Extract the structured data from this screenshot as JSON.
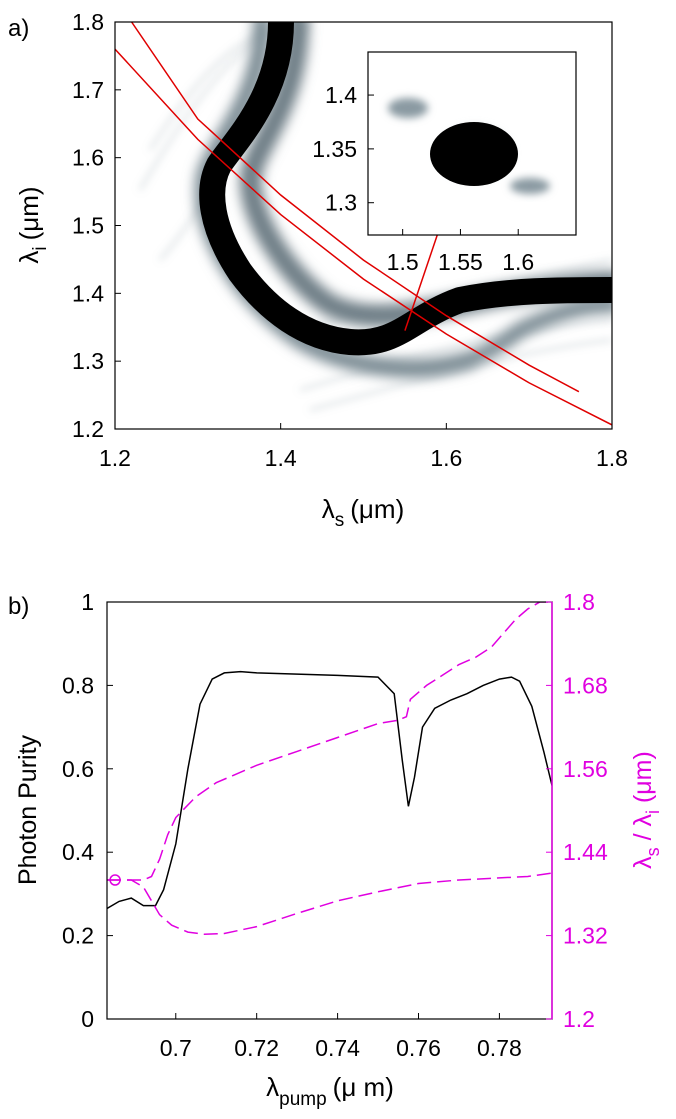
{
  "chart_data": [
    {
      "panel": "a)",
      "type": "heatmap",
      "xlabel_sym": "λ",
      "xlabel_sub": "s",
      "xlabel_unit": "(μm)",
      "ylabel_sym": "λ",
      "ylabel_sub": "i",
      "ylabel_unit": "(μm)",
      "xlim": [
        1.2,
        1.8
      ],
      "ylim": [
        1.2,
        1.8
      ],
      "xticks": [
        1.2,
        1.4,
        1.6,
        1.8
      ],
      "xtick_labels": [
        "1.2",
        "1.4",
        "1.6",
        "1.8"
      ],
      "yticks": [
        1.2,
        1.3,
        1.4,
        1.5,
        1.6,
        1.7,
        1.8
      ],
      "ytick_labels": [
        "1.2",
        "1.3",
        "1.4",
        "1.5",
        "1.6",
        "1.7",
        "1.8"
      ],
      "colormap": "grayscale (white = 0, black = max)",
      "curves_color": "#e00000",
      "energy_conservation_curves": [
        {
          "x": [
            1.2,
            1.3,
            1.4,
            1.5,
            1.6,
            1.7,
            1.8
          ],
          "y": [
            1.76,
            1.627,
            1.516,
            1.421,
            1.34,
            1.268,
            1.206
          ]
        },
        {
          "x": [
            1.22,
            1.3,
            1.4,
            1.5,
            1.6,
            1.7,
            1.76
          ],
          "y": [
            1.8,
            1.657,
            1.545,
            1.449,
            1.367,
            1.294,
            1.255
          ]
        }
      ],
      "arrow": {
        "from": [
          1.55,
          1.345
        ],
        "to_inset_peak": [
          1.55,
          1.34
        ]
      },
      "inset": {
        "xlim": [
          1.47,
          1.65
        ],
        "ylim": [
          1.27,
          1.44
        ],
        "xticks": [
          1.5,
          1.55,
          1.6
        ],
        "xtick_labels": [
          "1.5",
          "1.55",
          "1.6"
        ],
        "yticks": [
          1.3,
          1.35,
          1.4
        ],
        "ytick_labels": [
          "1.3",
          "1.35",
          "1.4"
        ],
        "peak": {
          "x": 1.553,
          "y": 1.34
        }
      }
    },
    {
      "panel": "b)",
      "type": "line",
      "xlabel_sym": "λ",
      "xlabel_sub": "pump",
      "xlabel_unit": "(μ m)",
      "ylabel": "Photon Purity",
      "ylabel_right_sym1": "λ",
      "ylabel_right_sub1": "s",
      "ylabel_right_sep": " / ",
      "ylabel_right_sym2": "λ",
      "ylabel_right_sub2": "i",
      "ylabel_right_unit": " (μm)",
      "xlim": [
        0.683,
        0.793
      ],
      "ylim": [
        0,
        1
      ],
      "ylim_right": [
        1.2,
        1.8
      ],
      "xticks": [
        0.7,
        0.72,
        0.74,
        0.76,
        0.78
      ],
      "xtick_labels": [
        "0.7",
        "0.72",
        "0.74",
        "0.76",
        "0.78"
      ],
      "yticks": [
        0,
        0.2,
        0.4,
        0.6,
        0.8,
        1
      ],
      "ytick_labels": [
        "0",
        "0.2",
        "0.4",
        "0.6",
        "0.8",
        "1"
      ],
      "yticks_right": [
        1.2,
        1.32,
        1.44,
        1.56,
        1.68,
        1.8
      ],
      "ytick_labels_right": [
        "1.2",
        "1.32",
        "1.44",
        "1.56",
        "1.68",
        "1.8"
      ],
      "right_axis_color": "#e000e0",
      "series": [
        {
          "color": "#000000",
          "style": "solid",
          "axis": "left",
          "x": [
            0.683,
            0.686,
            0.689,
            0.692,
            0.695,
            0.697,
            0.7,
            0.703,
            0.706,
            0.709,
            0.712,
            0.716,
            0.72,
            0.73,
            0.74,
            0.75,
            0.754,
            0.756,
            0.7575,
            0.759,
            0.761,
            0.764,
            0.768,
            0.772,
            0.776,
            0.78,
            0.783,
            0.785,
            0.788,
            0.791,
            0.793
          ],
          "y": [
            0.265,
            0.282,
            0.29,
            0.272,
            0.272,
            0.31,
            0.42,
            0.6,
            0.755,
            0.815,
            0.83,
            0.833,
            0.83,
            0.827,
            0.824,
            0.82,
            0.78,
            0.62,
            0.51,
            0.58,
            0.7,
            0.745,
            0.765,
            0.78,
            0.8,
            0.815,
            0.82,
            0.81,
            0.75,
            0.64,
            0.56
          ]
        },
        {
          "color": "#e000e0",
          "style": "dashed",
          "axis": "right",
          "x": [
            0.683,
            0.686,
            0.689,
            0.692,
            0.694,
            0.696,
            0.698,
            0.7,
            0.705,
            0.71,
            0.72,
            0.73,
            0.74,
            0.75,
            0.755,
            0.757,
            0.758,
            0.762,
            0.766,
            0.77,
            0.774,
            0.778,
            0.781,
            0.784,
            0.787,
            0.79,
            0.793
          ],
          "y": [
            1.4,
            1.4,
            1.4,
            1.4,
            1.405,
            1.43,
            1.465,
            1.49,
            1.52,
            1.54,
            1.565,
            1.585,
            1.605,
            1.625,
            1.63,
            1.635,
            1.66,
            1.68,
            1.695,
            1.71,
            1.72,
            1.735,
            1.755,
            1.775,
            1.79,
            1.8,
            1.8
          ]
        },
        {
          "color": "#e000e0",
          "style": "dashed",
          "axis": "right",
          "x": [
            0.683,
            0.686,
            0.689,
            0.692,
            0.694,
            0.696,
            0.699,
            0.703,
            0.707,
            0.712,
            0.72,
            0.73,
            0.74,
            0.75,
            0.76,
            0.77,
            0.78,
            0.787,
            0.793
          ],
          "y": [
            1.4,
            1.4,
            1.4,
            1.39,
            1.37,
            1.35,
            1.335,
            1.325,
            1.322,
            1.323,
            1.333,
            1.352,
            1.37,
            1.383,
            1.395,
            1.4,
            1.403,
            1.405,
            1.41
          ]
        }
      ],
      "marker": {
        "x": 0.685,
        "y": 1.4,
        "color": "#e000e0",
        "shape": "circle"
      }
    }
  ]
}
